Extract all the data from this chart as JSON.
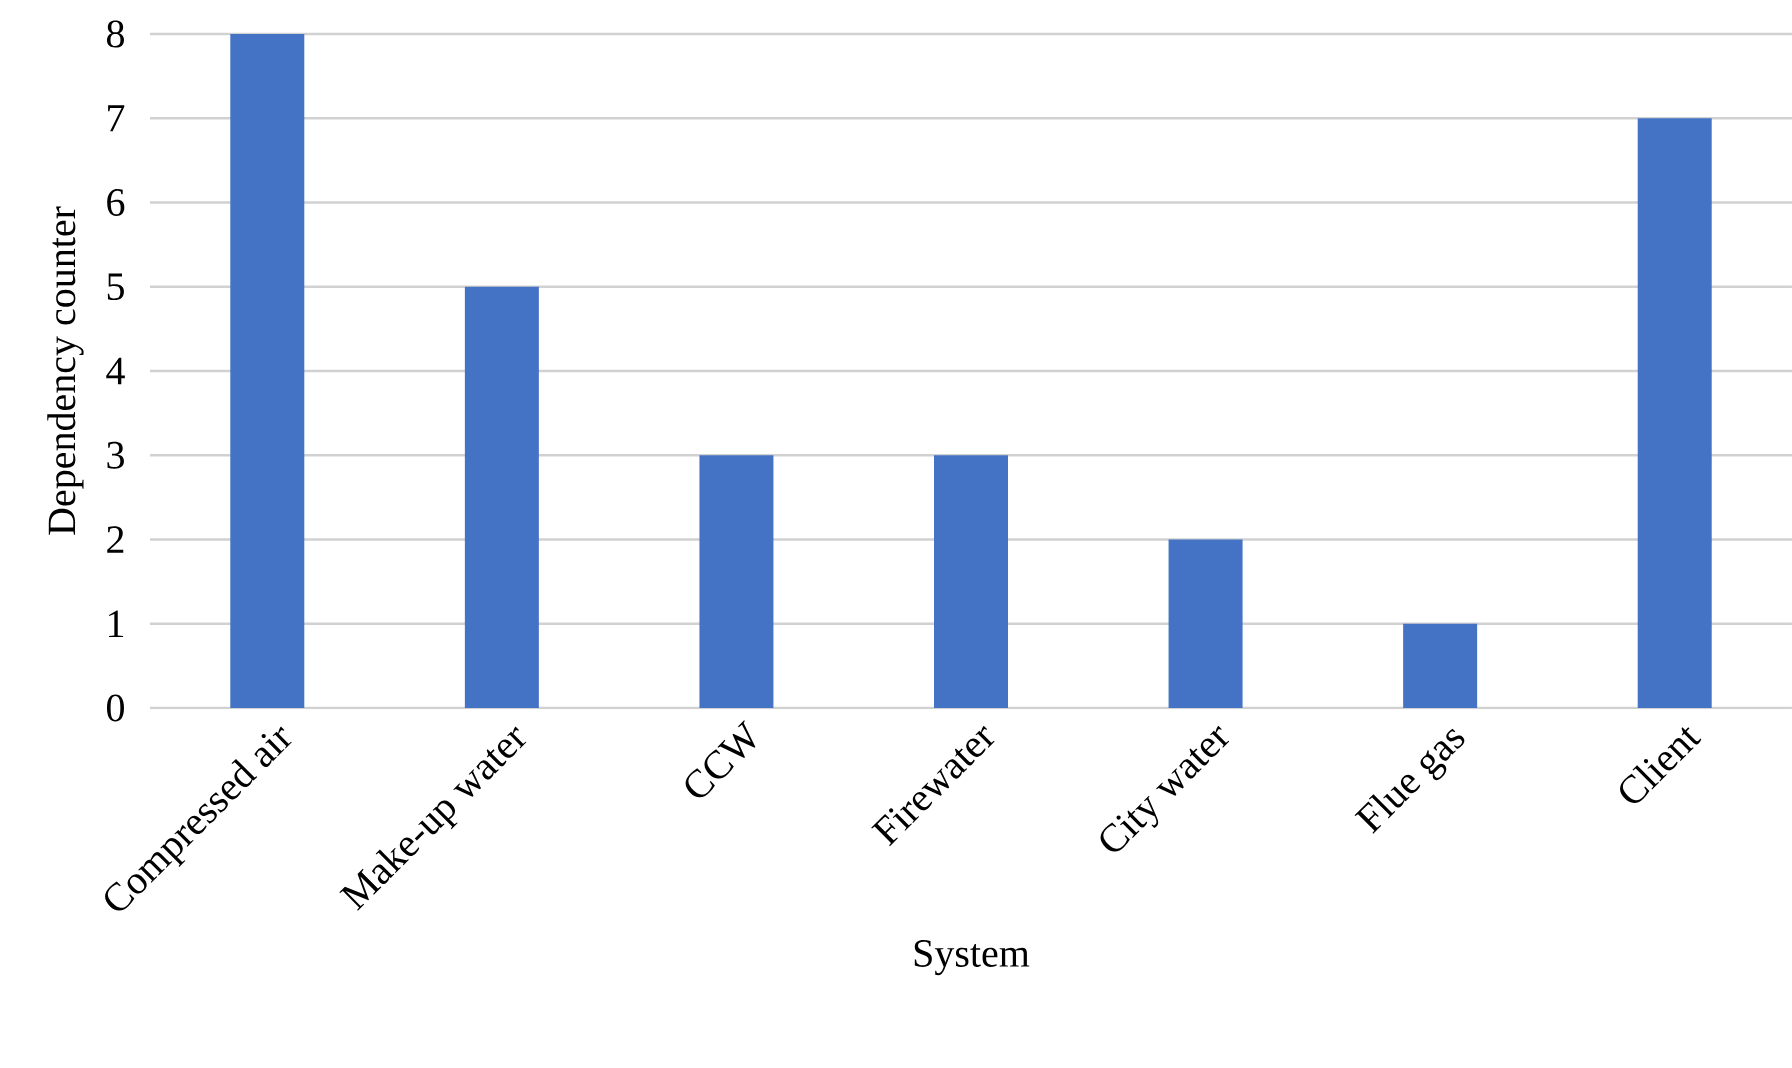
{
  "chart_data": {
    "type": "bar",
    "xlabel": "System",
    "ylabel": "Dependency counter",
    "categories": [
      "Compressed air",
      "Make-up water",
      "CCW",
      "Firewater",
      "City water",
      "Flue gas",
      "Client"
    ],
    "values": [
      8,
      5,
      3,
      3,
      2,
      1,
      7
    ],
    "color": "#4472c4",
    "ylim": [
      0,
      8
    ],
    "yticks": [
      0,
      1,
      2,
      3,
      4,
      5,
      6,
      7,
      8
    ],
    "grid": "y"
  }
}
